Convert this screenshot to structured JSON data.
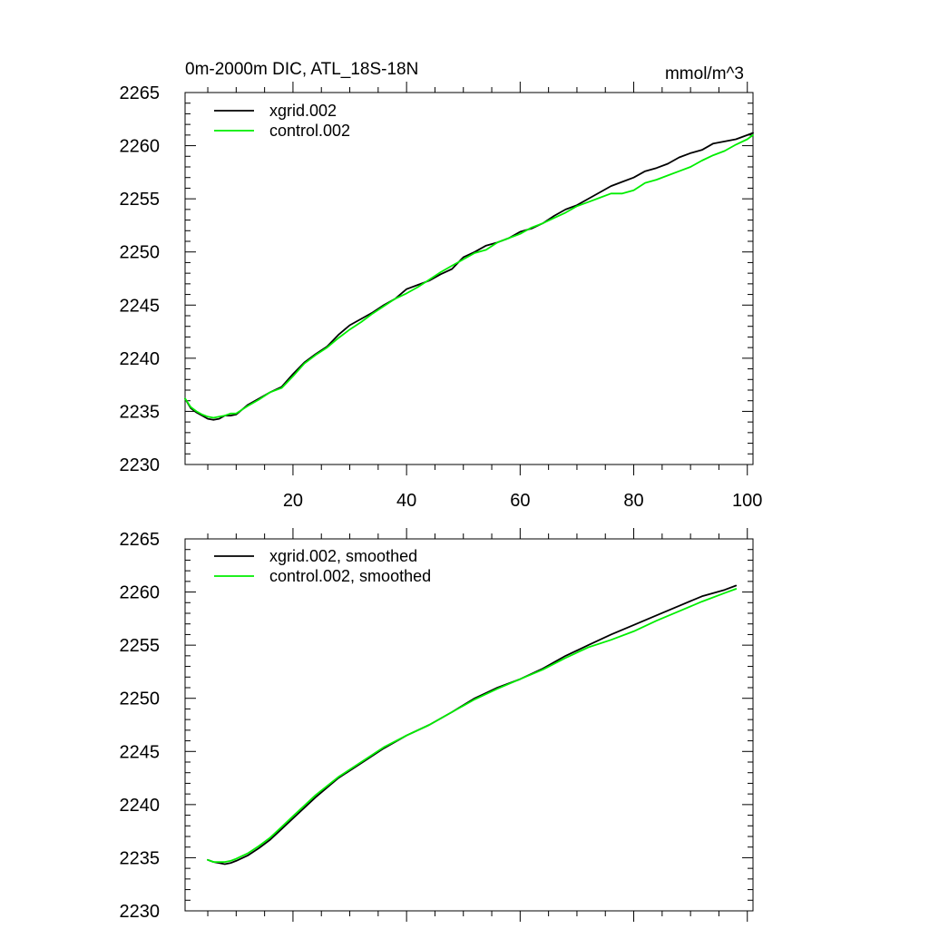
{
  "chart_data": [
    {
      "type": "line",
      "title_left": "0m-2000m DIC, ATL_18S-18N",
      "title_right": "mmol/m^3",
      "xlim": [
        1,
        101
      ],
      "ylim": [
        2230,
        2265
      ],
      "x_ticks": [
        20,
        40,
        60,
        80,
        100
      ],
      "y_ticks": [
        2230,
        2235,
        2240,
        2245,
        2250,
        2255,
        2260,
        2265
      ],
      "x_tick_labels_shown": true,
      "legend_position": "top-left",
      "series": [
        {
          "name": "xgrid.002",
          "color": "#000000",
          "points": [
            [
              1,
              2236.2
            ],
            [
              2,
              2235.3
            ],
            [
              3,
              2234.9
            ],
            [
              4,
              2234.6
            ],
            [
              5,
              2234.3
            ],
            [
              6,
              2234.2
            ],
            [
              7,
              2234.3
            ],
            [
              8,
              2234.6
            ],
            [
              9,
              2234.6
            ],
            [
              10,
              2234.7
            ],
            [
              12,
              2235.6
            ],
            [
              14,
              2236.2
            ],
            [
              16,
              2236.8
            ],
            [
              18,
              2237.3
            ],
            [
              20,
              2238.5
            ],
            [
              22,
              2239.6
            ],
            [
              24,
              2240.4
            ],
            [
              26,
              2241.1
            ],
            [
              28,
              2242.2
            ],
            [
              30,
              2243.1
            ],
            [
              32,
              2243.7
            ],
            [
              34,
              2244.3
            ],
            [
              36,
              2245.0
            ],
            [
              38,
              2245.6
            ],
            [
              40,
              2246.5
            ],
            [
              42,
              2246.9
            ],
            [
              44,
              2247.3
            ],
            [
              46,
              2247.9
            ],
            [
              48,
              2248.4
            ],
            [
              50,
              2249.5
            ],
            [
              52,
              2250.0
            ],
            [
              54,
              2250.6
            ],
            [
              56,
              2250.9
            ],
            [
              58,
              2251.3
            ],
            [
              60,
              2251.9
            ],
            [
              62,
              2252.2
            ],
            [
              64,
              2252.7
            ],
            [
              66,
              2253.4
            ],
            [
              68,
              2254.0
            ],
            [
              70,
              2254.4
            ],
            [
              72,
              2255.0
            ],
            [
              74,
              2255.6
            ],
            [
              76,
              2256.2
            ],
            [
              78,
              2256.6
            ],
            [
              80,
              2257.0
            ],
            [
              82,
              2257.6
            ],
            [
              84,
              2257.9
            ],
            [
              86,
              2258.3
            ],
            [
              88,
              2258.9
            ],
            [
              90,
              2259.3
            ],
            [
              92,
              2259.6
            ],
            [
              94,
              2260.2
            ],
            [
              96,
              2260.4
            ],
            [
              98,
              2260.6
            ],
            [
              100,
              2261.0
            ],
            [
              101,
              2261.2
            ]
          ]
        },
        {
          "name": "control.002",
          "color": "#00ee00",
          "points": [
            [
              1,
              2236.2
            ],
            [
              2,
              2235.4
            ],
            [
              3,
              2235.0
            ],
            [
              4,
              2234.7
            ],
            [
              5,
              2234.5
            ],
            [
              6,
              2234.4
            ],
            [
              7,
              2234.5
            ],
            [
              8,
              2234.6
            ],
            [
              9,
              2234.8
            ],
            [
              10,
              2234.8
            ],
            [
              12,
              2235.5
            ],
            [
              14,
              2236.1
            ],
            [
              16,
              2236.8
            ],
            [
              18,
              2237.2
            ],
            [
              20,
              2238.3
            ],
            [
              22,
              2239.5
            ],
            [
              24,
              2240.3
            ],
            [
              26,
              2241.0
            ],
            [
              28,
              2241.9
            ],
            [
              30,
              2242.7
            ],
            [
              32,
              2243.4
            ],
            [
              34,
              2244.2
            ],
            [
              36,
              2244.9
            ],
            [
              38,
              2245.6
            ],
            [
              40,
              2246.1
            ],
            [
              42,
              2246.7
            ],
            [
              44,
              2247.4
            ],
            [
              46,
              2248.1
            ],
            [
              48,
              2248.7
            ],
            [
              50,
              2249.3
            ],
            [
              52,
              2249.9
            ],
            [
              54,
              2250.2
            ],
            [
              56,
              2250.9
            ],
            [
              58,
              2251.3
            ],
            [
              60,
              2251.7
            ],
            [
              62,
              2252.3
            ],
            [
              64,
              2252.7
            ],
            [
              66,
              2253.2
            ],
            [
              68,
              2253.7
            ],
            [
              70,
              2254.3
            ],
            [
              72,
              2254.7
            ],
            [
              74,
              2255.1
            ],
            [
              76,
              2255.5
            ],
            [
              78,
              2255.5
            ],
            [
              80,
              2255.8
            ],
            [
              82,
              2256.5
            ],
            [
              84,
              2256.8
            ],
            [
              86,
              2257.2
            ],
            [
              88,
              2257.6
            ],
            [
              90,
              2258.0
            ],
            [
              92,
              2258.6
            ],
            [
              94,
              2259.1
            ],
            [
              96,
              2259.5
            ],
            [
              98,
              2260.1
            ],
            [
              100,
              2260.6
            ],
            [
              101,
              2261.0
            ]
          ]
        }
      ]
    },
    {
      "type": "line",
      "title_left": "",
      "title_right": "",
      "xlim": [
        1,
        101
      ],
      "ylim": [
        2230,
        2265
      ],
      "x_ticks": [
        20,
        40,
        60,
        80,
        100
      ],
      "y_ticks": [
        2230,
        2235,
        2240,
        2245,
        2250,
        2255,
        2260,
        2265
      ],
      "x_tick_labels_shown": false,
      "legend_position": "top-left",
      "series": [
        {
          "name": "xgrid.002, smoothed",
          "color": "#000000",
          "points": [
            [
              5,
              2234.8
            ],
            [
              6,
              2234.6
            ],
            [
              7,
              2234.5
            ],
            [
              8,
              2234.4
            ],
            [
              9,
              2234.5
            ],
            [
              10,
              2234.7
            ],
            [
              12,
              2235.2
            ],
            [
              14,
              2235.9
            ],
            [
              16,
              2236.7
            ],
            [
              18,
              2237.7
            ],
            [
              20,
              2238.7
            ],
            [
              24,
              2240.7
            ],
            [
              28,
              2242.5
            ],
            [
              32,
              2243.9
            ],
            [
              36,
              2245.3
            ],
            [
              40,
              2246.5
            ],
            [
              44,
              2247.5
            ],
            [
              48,
              2248.7
            ],
            [
              52,
              2250.0
            ],
            [
              56,
              2251.0
            ],
            [
              60,
              2251.8
            ],
            [
              64,
              2252.8
            ],
            [
              68,
              2254.0
            ],
            [
              72,
              2255.0
            ],
            [
              76,
              2256.0
            ],
            [
              80,
              2256.9
            ],
            [
              84,
              2257.8
            ],
            [
              88,
              2258.7
            ],
            [
              92,
              2259.6
            ],
            [
              96,
              2260.2
            ],
            [
              98,
              2260.6
            ]
          ]
        },
        {
          "name": "control.002, smoothed",
          "color": "#00ee00",
          "points": [
            [
              5,
              2234.8
            ],
            [
              6,
              2234.6
            ],
            [
              7,
              2234.6
            ],
            [
              8,
              2234.6
            ],
            [
              9,
              2234.7
            ],
            [
              10,
              2234.9
            ],
            [
              12,
              2235.4
            ],
            [
              14,
              2236.1
            ],
            [
              16,
              2236.9
            ],
            [
              18,
              2237.9
            ],
            [
              20,
              2238.9
            ],
            [
              24,
              2240.9
            ],
            [
              28,
              2242.6
            ],
            [
              32,
              2244.0
            ],
            [
              36,
              2245.4
            ],
            [
              40,
              2246.5
            ],
            [
              44,
              2247.5
            ],
            [
              48,
              2248.7
            ],
            [
              52,
              2249.9
            ],
            [
              56,
              2250.9
            ],
            [
              60,
              2251.8
            ],
            [
              64,
              2252.7
            ],
            [
              68,
              2253.8
            ],
            [
              72,
              2254.8
            ],
            [
              76,
              2255.5
            ],
            [
              80,
              2256.3
            ],
            [
              84,
              2257.3
            ],
            [
              88,
              2258.2
            ],
            [
              92,
              2259.1
            ],
            [
              96,
              2259.9
            ],
            [
              98,
              2260.3
            ]
          ]
        }
      ]
    }
  ]
}
